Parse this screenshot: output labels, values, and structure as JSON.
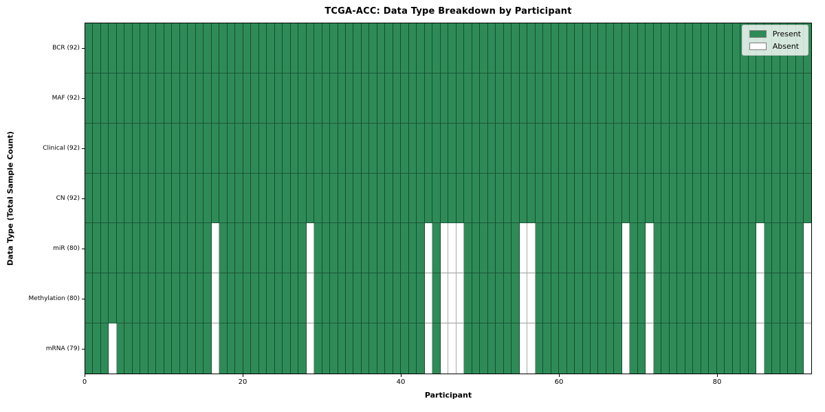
{
  "chart_data": {
    "type": "heatmap",
    "title": "TCGA-ACC: Data Type Breakdown by Participant",
    "xlabel": "Participant",
    "ylabel": "Data Type (Total Sample Count)",
    "n_participants": 92,
    "xlim": [
      0,
      92
    ],
    "x_ticks": [
      0,
      20,
      40,
      60,
      80
    ],
    "grid": "cell-edges",
    "legend_position": "upper-right",
    "colors": {
      "present": "#2e8b57",
      "absent": "#ffffff",
      "cell_edge_on_green": "rgba(5,25,15,0.55)",
      "cell_edge_on_white": "#ababab",
      "plot_border": "#000000"
    },
    "legend": [
      {
        "label": "Present",
        "color": "#2e8b57"
      },
      {
        "label": "Absent",
        "color": "#ffffff"
      }
    ],
    "rows": [
      {
        "label": "BCR (92)",
        "data_type": "BCR",
        "present_count": 92,
        "absent_participants": []
      },
      {
        "label": "MAF (92)",
        "data_type": "MAF",
        "present_count": 92,
        "absent_participants": []
      },
      {
        "label": "Clinical (92)",
        "data_type": "Clinical",
        "present_count": 92,
        "absent_participants": []
      },
      {
        "label": "CN (92)",
        "data_type": "CN",
        "present_count": 92,
        "absent_participants": []
      },
      {
        "label": "miR (80)",
        "data_type": "miR",
        "present_count": 80,
        "absent_participants": [
          16,
          28,
          43,
          45,
          46,
          47,
          55,
          56,
          68,
          71,
          85,
          91
        ]
      },
      {
        "label": "Methylation (80)",
        "data_type": "Methylation",
        "present_count": 80,
        "absent_participants": [
          16,
          28,
          43,
          45,
          46,
          47,
          55,
          56,
          68,
          71,
          85,
          91
        ]
      },
      {
        "label": "mRNA (79)",
        "data_type": "mRNA",
        "present_count": 79,
        "absent_participants": [
          3,
          16,
          28,
          43,
          45,
          46,
          47,
          55,
          56,
          68,
          71,
          85,
          91
        ]
      }
    ]
  }
}
